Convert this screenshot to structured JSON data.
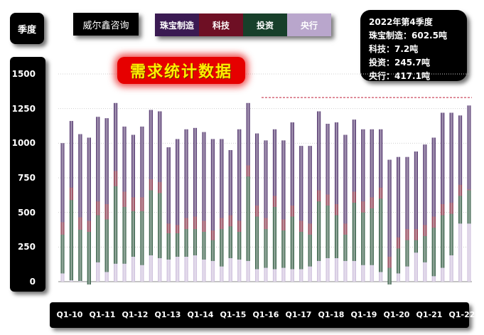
{
  "season_label": "季度",
  "company": "威尔鑫咨询",
  "legend": [
    {
      "name": "珠宝制造",
      "color": "#3a1a52"
    },
    {
      "name": "科技",
      "color": "#6e0f24"
    },
    {
      "name": "投资",
      "color": "#173f2a"
    },
    {
      "name": "央行",
      "color": "#b9a6cc"
    }
  ],
  "summary": {
    "heading": "2022年第4季度",
    "lines": [
      "珠宝制造：602.5吨",
      "科技：7.2吨",
      "投资：245.7吨",
      "央行：417.1吨"
    ]
  },
  "chart_title": "需求统计数据",
  "chart_data": {
    "type": "bar",
    "stacked": true,
    "title": "需求统计数据",
    "ylim": [
      0,
      1500
    ],
    "y_ticks": [
      1500,
      1250,
      1000,
      750,
      500,
      250,
      0
    ],
    "x_labels": [
      "Q1-10",
      "Q1-11",
      "Q1-12",
      "Q1-13",
      "Q1-14",
      "Q1-15",
      "Q1-16",
      "Q1-17",
      "Q1-18",
      "Q1-19",
      "Q1-20",
      "Q1-21",
      "Q1-22"
    ],
    "reference_line": 1330,
    "grid": true,
    "series": [
      {
        "name": "央行",
        "color": "#c8b8d8",
        "values": [
          60,
          10,
          5,
          -20,
          140,
          70,
          130,
          130,
          180,
          120,
          190,
          170,
          160,
          180,
          180,
          190,
          160,
          150,
          110,
          170,
          160,
          150,
          90,
          100,
          90,
          100,
          90,
          90,
          110,
          150,
          170,
          170,
          150,
          150,
          120,
          120,
          70,
          -20,
          60,
          110,
          210,
          140,
          40,
          100,
          190,
          420,
          420
        ]
      },
      {
        "name": "投资",
        "color": "#1d4a2f",
        "values": [
          280,
          580,
          370,
          380,
          340,
          380,
          560,
          410,
          330,
          390,
          470,
          470,
          190,
          170,
          200,
          190,
          200,
          150,
          270,
          230,
          200,
          610,
          380,
          280,
          450,
          270,
          380,
          270,
          230,
          430,
          380,
          310,
          190,
          420,
          380,
          410,
          530,
          120,
          180,
          190,
          90,
          190,
          350,
          380,
          300,
          200,
          240
        ]
      },
      {
        "name": "科技",
        "color": "#7a1a32",
        "values": [
          90,
          90,
          90,
          80,
          100,
          110,
          110,
          110,
          100,
          100,
          80,
          80,
          70,
          60,
          80,
          90,
          80,
          70,
          80,
          80,
          80,
          80,
          80,
          80,
          80,
          80,
          80,
          80,
          80,
          80,
          80,
          80,
          80,
          80,
          80,
          80,
          80,
          80,
          80,
          80,
          80,
          80,
          80,
          80,
          80,
          80,
          7
        ]
      },
      {
        "name": "珠宝制造",
        "color": "#3e1e5c",
        "values": [
          570,
          480,
          600,
          600,
          610,
          620,
          490,
          470,
          450,
          510,
          500,
          510,
          550,
          620,
          640,
          640,
          640,
          660,
          570,
          470,
          660,
          450,
          520,
          560,
          480,
          570,
          600,
          540,
          560,
          570,
          510,
          590,
          640,
          520,
          520,
          490,
          420,
          700,
          580,
          520,
          560,
          580,
          570,
          660,
          650,
          500,
          605
        ]
      }
    ]
  }
}
